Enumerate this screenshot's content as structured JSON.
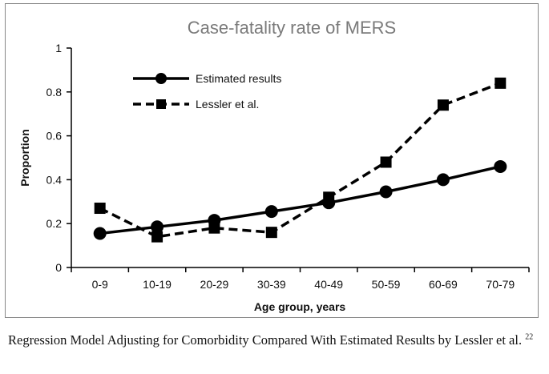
{
  "chart_data": {
    "type": "line",
    "title": "Case-fatality rate of MERS",
    "xlabel": "Age group, years",
    "ylabel": "Proportion",
    "categories": [
      "0-9",
      "10-19",
      "20-29",
      "30-39",
      "40-49",
      "50-59",
      "60-69",
      "70-79"
    ],
    "ylim": [
      0,
      1
    ],
    "yticks": [
      0,
      0.2,
      0.4,
      0.6,
      0.8,
      1
    ],
    "ytick_labels": [
      "0",
      "0.2",
      "0.4",
      "0.6",
      "0.8",
      "1"
    ],
    "grid": false,
    "legend_position": "top-left",
    "series": [
      {
        "name": "Estimated results",
        "marker": "circle",
        "line_style": "solid",
        "color": "#000000",
        "values": [
          0.155,
          0.185,
          0.215,
          0.255,
          0.295,
          0.345,
          0.4,
          0.46
        ]
      },
      {
        "name": "Lessler et al.",
        "marker": "square",
        "line_style": "dashed",
        "color": "#000000",
        "values": [
          0.27,
          0.14,
          0.18,
          0.16,
          0.32,
          0.48,
          0.74,
          0.84
        ]
      }
    ]
  },
  "caption": {
    "text": "Regression Model Adjusting for Comorbidity Compared With Estimated Results by Lessler et al.",
    "reference": "22"
  }
}
